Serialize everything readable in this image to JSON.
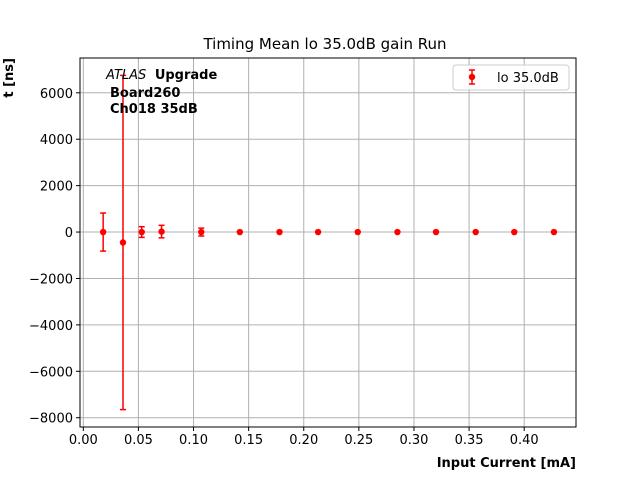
{
  "chart_data": {
    "type": "scatter",
    "title": "Timing Mean lo 35.0dB gain Run",
    "xlabel": "Input Current [mA]",
    "ylabel": "t [ns]",
    "xlim": [
      -0.003,
      0.447
    ],
    "ylim": [
      -8400,
      7500
    ],
    "xticks": [
      0.0,
      0.05,
      0.1,
      0.15,
      0.2,
      0.25,
      0.3,
      0.35,
      0.4
    ],
    "xtick_labels": [
      "0.00",
      "0.05",
      "0.10",
      "0.15",
      "0.20",
      "0.25",
      "0.30",
      "0.35",
      "0.40"
    ],
    "yticks": [
      -8000,
      -6000,
      -4000,
      -2000,
      0,
      2000,
      4000,
      6000
    ],
    "ytick_labels": [
      "−8000",
      "−6000",
      "−4000",
      "−2000",
      "0",
      "2000",
      "4000",
      "6000"
    ],
    "grid": true,
    "legend_position": "upper right",
    "series": [
      {
        "name": "lo 35.0dB",
        "color": "#ff0000",
        "marker": "circle",
        "x": [
          0.018,
          0.036,
          0.053,
          0.071,
          0.107,
          0.142,
          0.178,
          0.213,
          0.249,
          0.285,
          0.32,
          0.356,
          0.391,
          0.427
        ],
        "y": [
          0,
          -450,
          0,
          20,
          0,
          0,
          0,
          0,
          0,
          0,
          0,
          0,
          0,
          0
        ],
        "err": [
          820,
          7200,
          230,
          270,
          170,
          0,
          0,
          0,
          0,
          0,
          0,
          0,
          0,
          0
        ]
      }
    ],
    "annotation": {
      "atlas": "ATLAS",
      "upgrade": "Upgrade",
      "line2": "Board260",
      "line3": "Ch018 35dB"
    }
  }
}
